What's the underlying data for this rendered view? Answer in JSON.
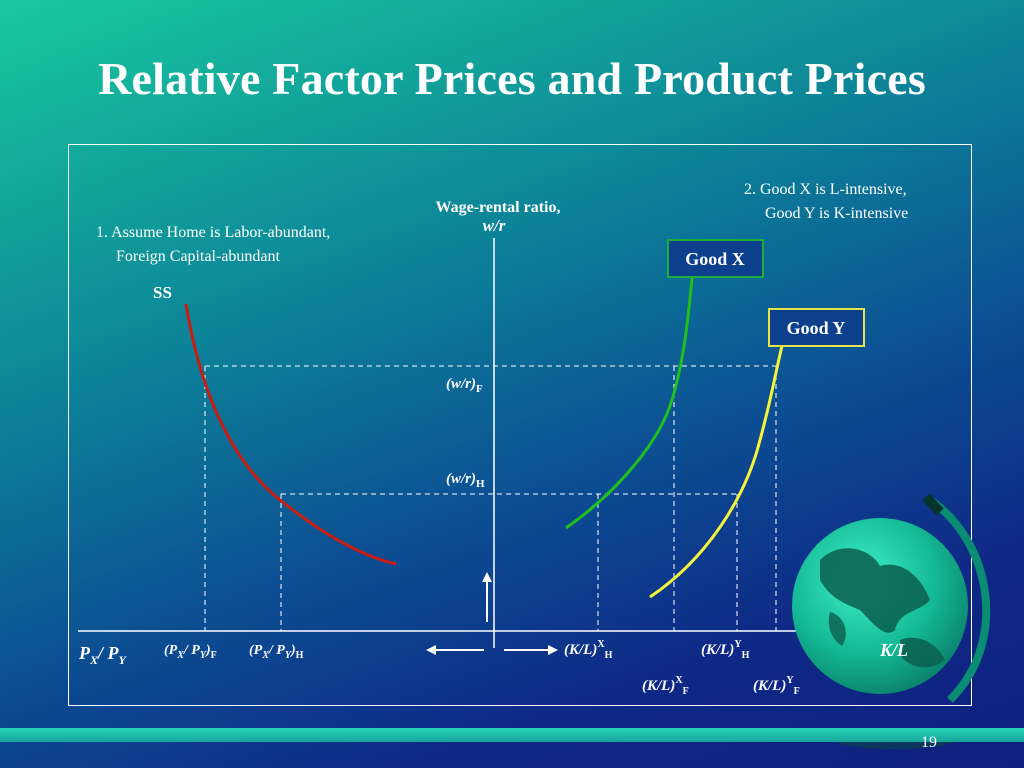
{
  "title": "Relative Factor Prices and Product Prices",
  "slide_number": "19",
  "notes": {
    "note1_line1": "1. Assume Home is Labor-abundant,",
    "note1_line2": "Foreign Capital-abundant",
    "note2_line1": "2. Good X is L-intensive,",
    "note2_line2": "Good Y is K-intensive"
  },
  "axes": {
    "y_label_line1": "Wage-rental ratio,",
    "y_label_line2": "w/r",
    "right_label": "K/L",
    "left_label_main": "P",
    "left_label_sub1": "X",
    "left_label_sep": "/ P",
    "left_label_sub2": "Y"
  },
  "curves": {
    "ss_label": "SS",
    "good_x_label": "Good X",
    "good_y_label": "Good Y",
    "colors": {
      "ss": "#c81d12",
      "good_x": "#1fbf1f",
      "good_y": "#f4f43a",
      "good_x_box_border": "#1fae3a",
      "good_y_box_border": "#e6e24a",
      "box_fill": "#0c3f8c"
    }
  },
  "levels": {
    "wr_f_main": "(w/r)",
    "wr_f_sub": "F",
    "wr_h_main": "(w/r)",
    "wr_h_sub": "H"
  },
  "left_ticks": {
    "pf_open": "(P",
    "pf_sub1": "X",
    "pf_mid": "/ P",
    "pf_sub2": "Y",
    "pf_close": ")",
    "pf_sub3": "F",
    "ph_open": "(P",
    "ph_sub1": "X",
    "ph_mid": "/ P",
    "ph_sub2": "Y",
    "ph_close": ")",
    "ph_sub3": "H"
  },
  "right_ticks": {
    "klxh_main": "(K/L)",
    "klxh_sup": "X",
    "klxh_sub": "H",
    "klyh_main": "(K/L)",
    "klyh_sup": "Y",
    "klyh_sub": "H",
    "klxf_main": "(K/L)",
    "klxf_sup": "X",
    "klxf_sub": "F",
    "klyf_main": "(K/L)",
    "klyf_sup": "Y",
    "klyf_sub": "F"
  },
  "icons": {
    "globe": "globe-icon"
  }
}
